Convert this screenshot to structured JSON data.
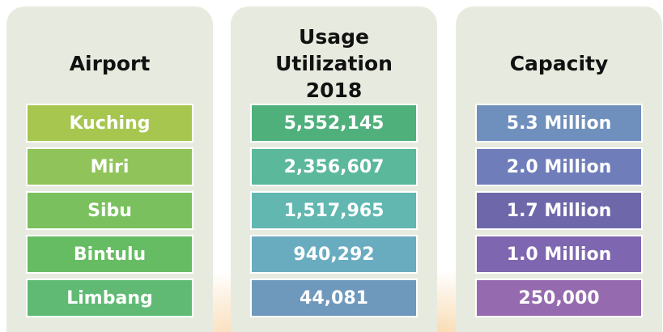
{
  "columns": [
    {
      "header": "Airport",
      "cells": [
        "Kuching",
        "Miri",
        "Sibu",
        "Bintulu",
        "Limbang"
      ]
    },
    {
      "header": "Usage Utilization 2018",
      "cells": [
        "5,552,145",
        "2,356,607",
        "1,517,965",
        "940,292",
        "44,081"
      ]
    },
    {
      "header": "Capacity",
      "cells": [
        "5.3 Million",
        "2.0 Million",
        "1.7 Million",
        "1.0 Million",
        "250,000"
      ]
    }
  ]
}
